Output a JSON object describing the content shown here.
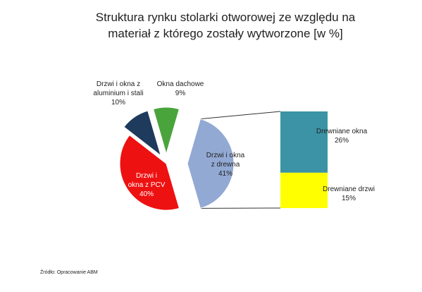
{
  "title": {
    "line1": "Struktura rynku stolarki otworowej ze względu na",
    "line2": "materiał z którego zostały wytworzone [w %]"
  },
  "chart_data": {
    "type": "pie",
    "title": "Struktura rynku stolarki otworowej ze względu na materiał z którego zostały wytworzone [w %]",
    "pie": {
      "slices": [
        {
          "label": "Drzwi i okna z drewna",
          "value": 41,
          "color": "#92a9d3"
        },
        {
          "label": "Drzwi i okna z PCV",
          "value": 40,
          "color": "#ee1111"
        },
        {
          "label": "Drzwi i okna z aluminium i stali",
          "value": 10,
          "color": "#1e3a5c"
        },
        {
          "label": "Okna dachowe",
          "value": 9,
          "color": "#4aa43c"
        }
      ]
    },
    "bar_of_pie": {
      "parent": "Drzwi i okna z drewna",
      "segments": [
        {
          "label": "Drewniane okna",
          "value": 26,
          "color": "#3b93a5"
        },
        {
          "label": "Drewniane drzwi",
          "value": 15,
          "color": "#ffff00"
        }
      ]
    }
  },
  "labels": {
    "aluminium": {
      "line1": "Drzwi i okna z",
      "line2": "aluminium i stali",
      "value": "10%"
    },
    "dachowe": {
      "line1": "Okna dachowe",
      "value": "9%"
    },
    "drewna": {
      "line1": "Drzwi i okna",
      "line2": "z drewna",
      "value": "41%"
    },
    "pcv": {
      "line1": "Drzwi i",
      "line2": "okna z PCV",
      "value": "40%"
    },
    "okna": {
      "line1": "Drewniane okna",
      "value": "26%"
    },
    "drzwi": {
      "line1": "Drewniane drzwi",
      "value": "15%"
    }
  },
  "source": "Źródło: Opracowanie ABM"
}
